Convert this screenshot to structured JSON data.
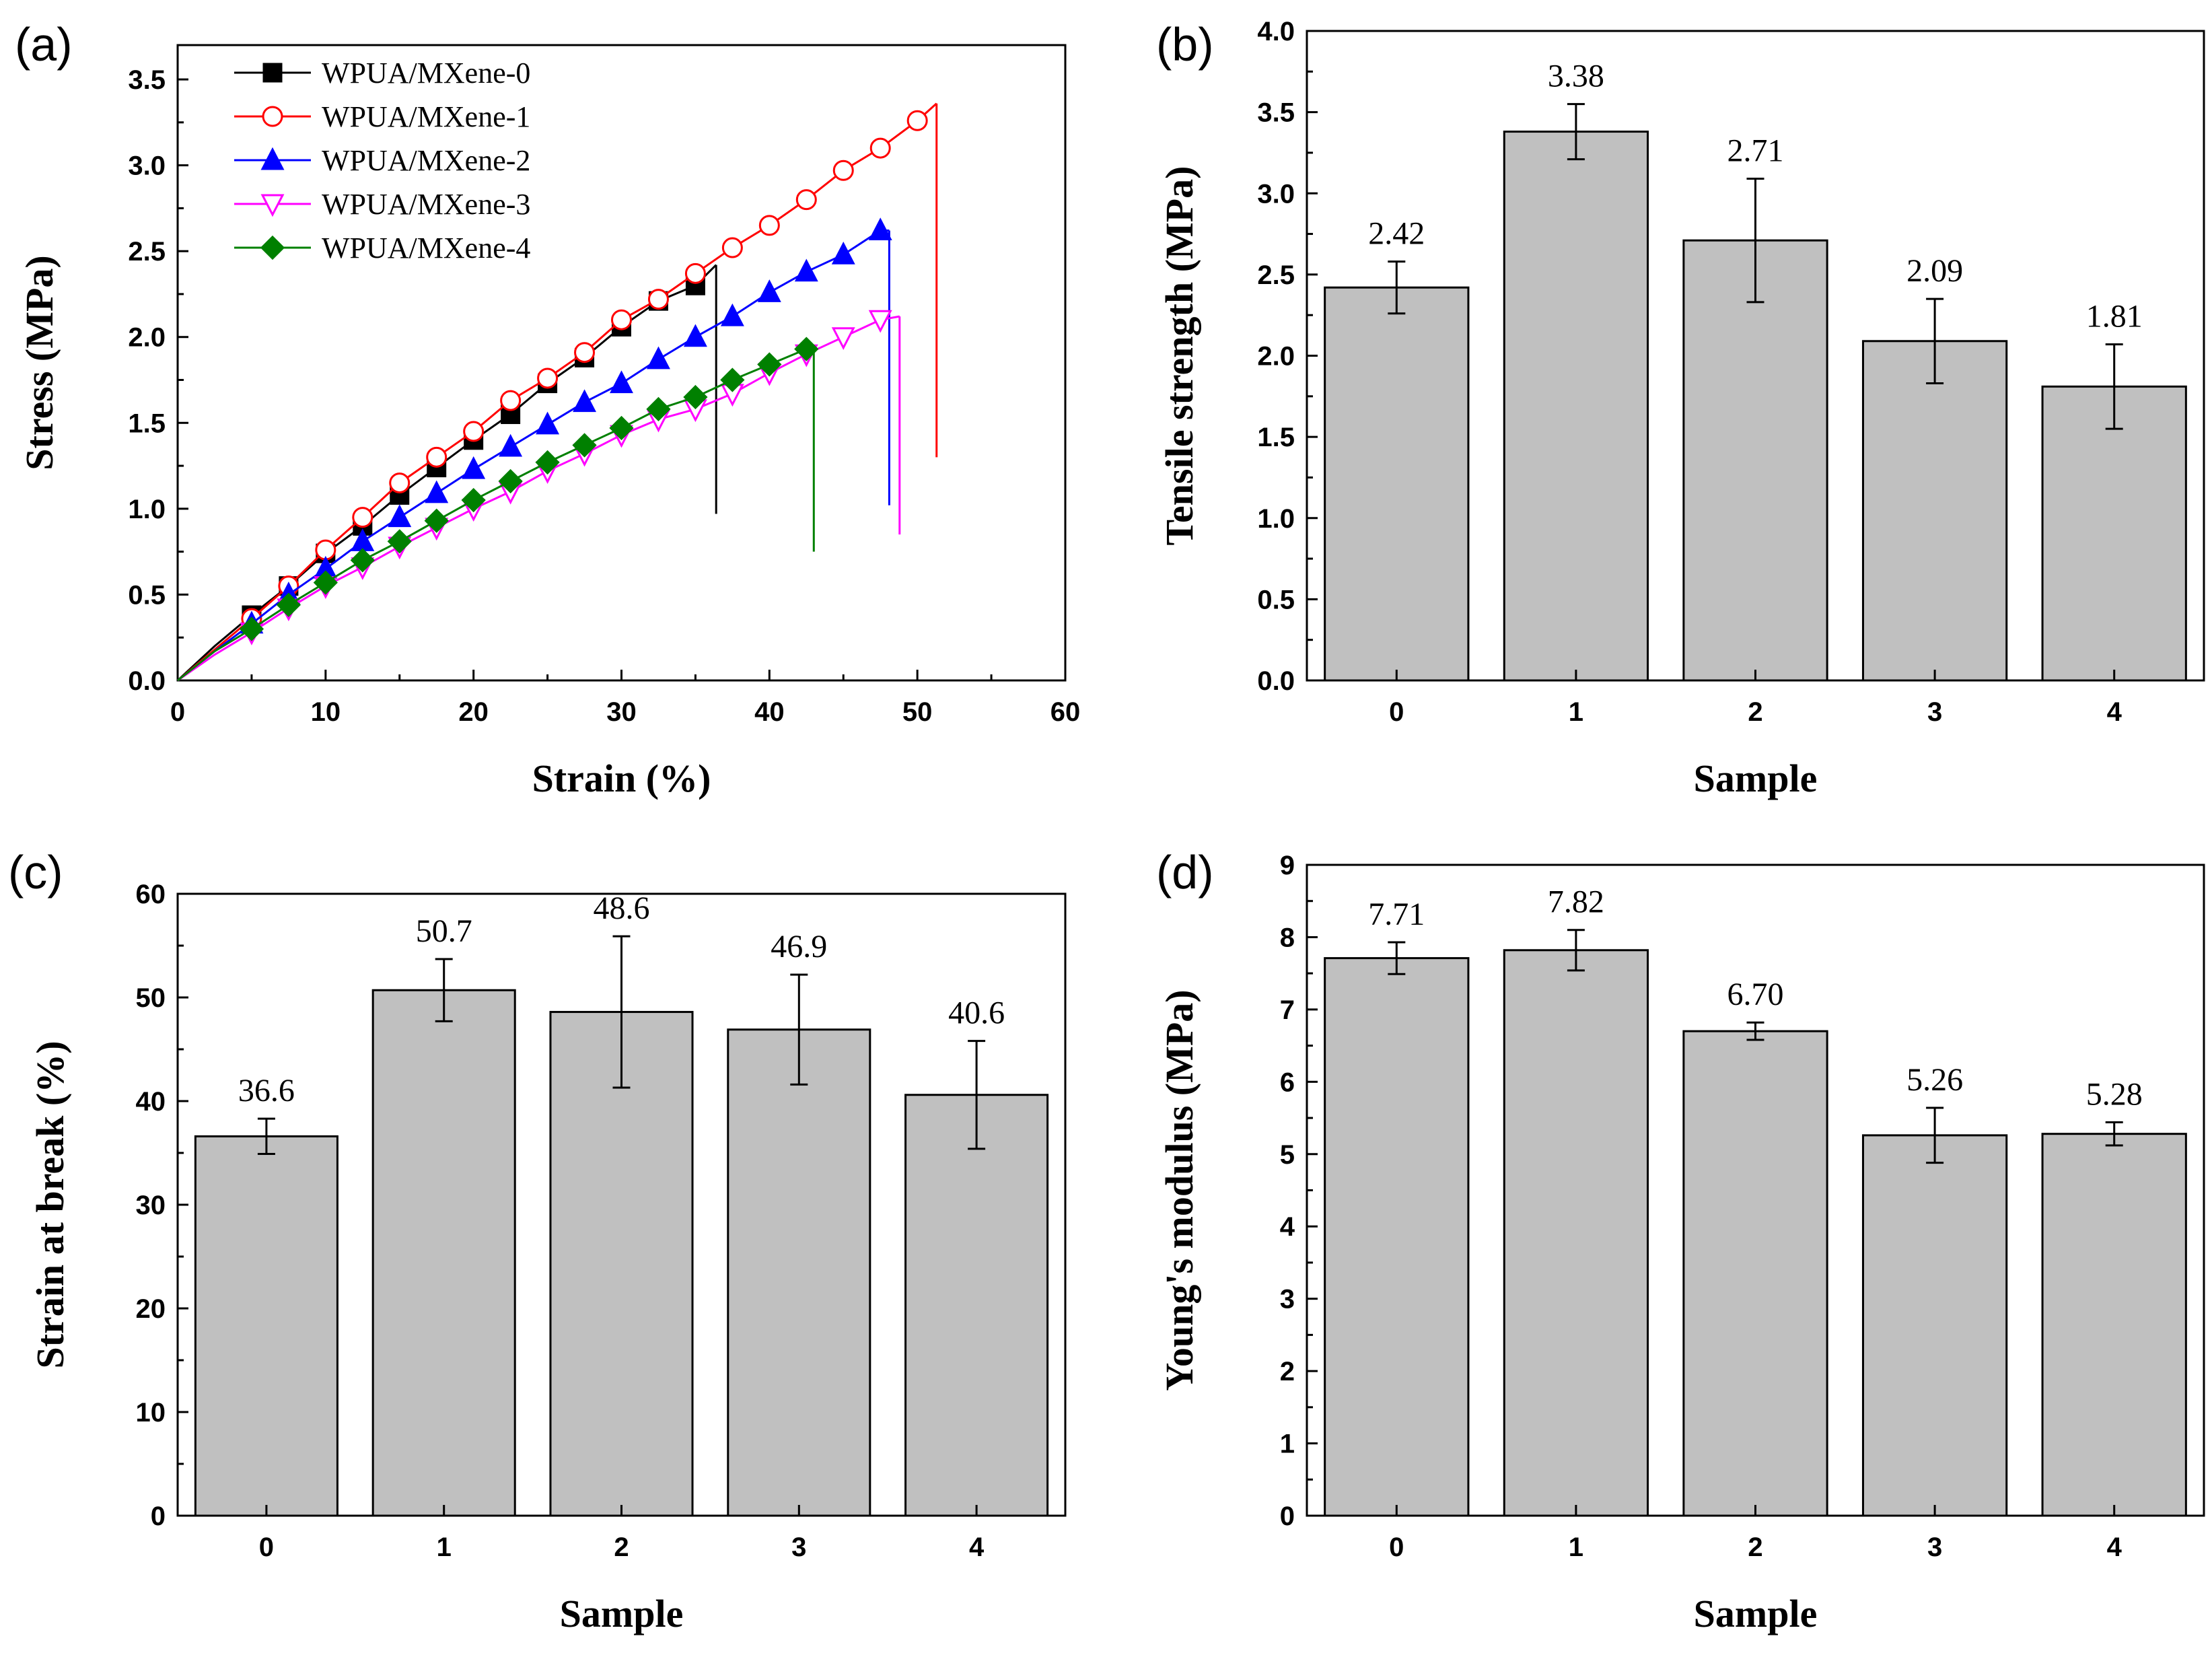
{
  "chart_data": [
    {
      "panel": "(a)",
      "type": "line",
      "xlabel": "Strain (%)",
      "ylabel": "Stress (MPa)",
      "xlim": [
        0,
        60
      ],
      "ylim": [
        0,
        3.7
      ],
      "xticks": [
        "0",
        "10",
        "20",
        "30",
        "40",
        "50",
        "60"
      ],
      "yticks": [
        "0.0",
        "0.5",
        "1.0",
        "1.5",
        "2.0",
        "2.5",
        "3.0",
        "3.5"
      ],
      "legend": "top-left",
      "series": [
        {
          "name": "WPUA/MXene-0",
          "color": "#000000",
          "marker": "square-filled",
          "x": [
            0,
            2.5,
            5,
            7.5,
            10,
            12.5,
            15,
            17.5,
            20,
            22.5,
            25,
            27.5,
            30,
            32.5,
            35,
            36.4
          ],
          "y": [
            0,
            0.2,
            0.38,
            0.55,
            0.74,
            0.9,
            1.08,
            1.24,
            1.4,
            1.55,
            1.73,
            1.88,
            2.06,
            2.21,
            2.3,
            2.42
          ],
          "break_drop": 0.97
        },
        {
          "name": "WPUA/MXene-1",
          "color": "#ff0000",
          "marker": "circle-open",
          "x": [
            0,
            2.5,
            5,
            7.5,
            10,
            12.5,
            15,
            17.5,
            20,
            22.5,
            25,
            27.5,
            30,
            32.5,
            35,
            37.5,
            40,
            42.5,
            45,
            47.5,
            50,
            51.3
          ],
          "y": [
            0,
            0.18,
            0.36,
            0.55,
            0.76,
            0.95,
            1.15,
            1.3,
            1.45,
            1.63,
            1.76,
            1.91,
            2.1,
            2.22,
            2.37,
            2.52,
            2.65,
            2.8,
            2.97,
            3.1,
            3.26,
            3.36
          ],
          "break_drop": 1.3
        },
        {
          "name": "WPUA/MXene-2",
          "color": "#0000ff",
          "marker": "triangle-up-filled",
          "x": [
            0,
            2.5,
            5,
            7.5,
            10,
            12.5,
            15,
            17.5,
            20,
            22.5,
            25,
            27.5,
            30,
            32.5,
            35,
            37.5,
            40,
            42.5,
            45,
            47.5,
            48.1
          ],
          "y": [
            0,
            0.17,
            0.33,
            0.5,
            0.65,
            0.81,
            0.95,
            1.09,
            1.23,
            1.36,
            1.49,
            1.62,
            1.73,
            1.87,
            2.0,
            2.12,
            2.26,
            2.38,
            2.48,
            2.62,
            2.62
          ],
          "break_drop": 1.02
        },
        {
          "name": "WPUA/MXene-3",
          "color": "#ff00ff",
          "marker": "triangle-down-open",
          "x": [
            0,
            2.5,
            5,
            7.5,
            10,
            12.5,
            15,
            17.5,
            20,
            22.5,
            25,
            27.5,
            30,
            32.5,
            35,
            37.5,
            40,
            42.5,
            45,
            47.5,
            48.8
          ],
          "y": [
            0,
            0.15,
            0.28,
            0.42,
            0.55,
            0.66,
            0.78,
            0.89,
            1.0,
            1.1,
            1.22,
            1.32,
            1.43,
            1.52,
            1.58,
            1.67,
            1.79,
            1.9,
            2.0,
            2.1,
            2.12
          ],
          "break_drop": 0.85
        },
        {
          "name": "WPUA/MXene-4",
          "color": "#008000",
          "marker": "diamond-filled",
          "x": [
            0,
            2.5,
            5,
            7.5,
            10,
            12.5,
            15,
            17.5,
            20,
            22.5,
            25,
            27.5,
            30,
            32.5,
            35,
            37.5,
            40,
            42.5,
            43
          ],
          "y": [
            0,
            0.17,
            0.3,
            0.44,
            0.57,
            0.7,
            0.81,
            0.93,
            1.05,
            1.16,
            1.27,
            1.37,
            1.47,
            1.58,
            1.65,
            1.75,
            1.84,
            1.93,
            1.95
          ],
          "break_drop": 0.75
        }
      ]
    },
    {
      "panel": "(b)",
      "type": "bar",
      "xlabel": "Sample",
      "ylabel": "Tensile strength (MPa)",
      "categories": [
        "0",
        "1",
        "2",
        "3",
        "4"
      ],
      "values": [
        2.42,
        3.38,
        2.71,
        2.09,
        1.81
      ],
      "value_labels": [
        "2.42",
        "3.38",
        "2.71",
        "2.09",
        "1.81"
      ],
      "errors": [
        0.16,
        0.17,
        0.38,
        0.26,
        0.26
      ],
      "ylim": [
        0,
        4.0
      ],
      "yticks": [
        "0.0",
        "0.5",
        "1.0",
        "1.5",
        "2.0",
        "2.5",
        "3.0",
        "3.5",
        "4.0"
      ],
      "bar_color": "#c0c0c0"
    },
    {
      "panel": "(c)",
      "type": "bar",
      "xlabel": "Sample",
      "ylabel": "Strain at break (%)",
      "categories": [
        "0",
        "1",
        "2",
        "3",
        "4"
      ],
      "values": [
        36.6,
        50.7,
        48.6,
        46.9,
        40.6
      ],
      "value_labels": [
        "36.6",
        "50.7",
        "48.6",
        "46.9",
        "40.6"
      ],
      "errors": [
        1.7,
        3.0,
        7.3,
        5.3,
        5.2
      ],
      "ylim": [
        0,
        60
      ],
      "yticks": [
        "0",
        "10",
        "20",
        "30",
        "40",
        "50",
        "60"
      ],
      "bar_color": "#c0c0c0"
    },
    {
      "panel": "(d)",
      "type": "bar",
      "xlabel": "Sample",
      "ylabel": "Young's modulus (MPa)",
      "categories": [
        "0",
        "1",
        "2",
        "3",
        "4"
      ],
      "values": [
        7.71,
        7.82,
        6.7,
        5.26,
        5.28
      ],
      "value_labels": [
        "7.71",
        "7.82",
        "6.70",
        "5.26",
        "5.28"
      ],
      "errors": [
        0.22,
        0.28,
        0.12,
        0.38,
        0.16
      ],
      "ylim": [
        0,
        9
      ],
      "yticks": [
        "0",
        "1",
        "2",
        "3",
        "4",
        "5",
        "6",
        "7",
        "8",
        "9"
      ],
      "bar_color": "#c0c0c0"
    }
  ]
}
